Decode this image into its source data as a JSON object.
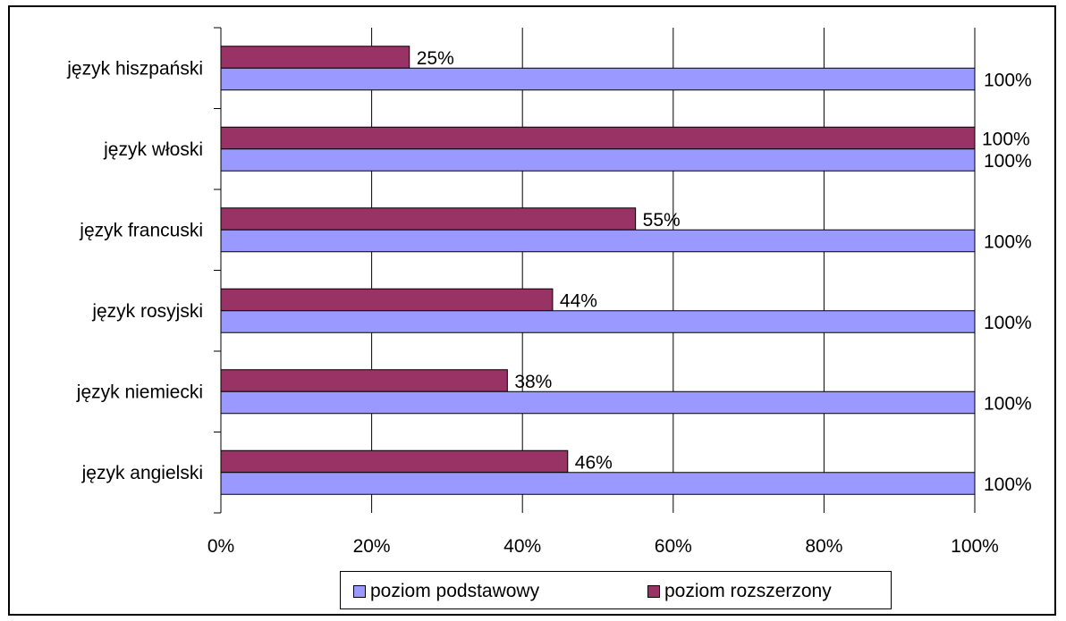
{
  "chart_data": {
    "type": "bar",
    "orientation": "horizontal",
    "categories": [
      "język angielski",
      "język niemiecki",
      "język rosyjski",
      "język francuski",
      "język włoski",
      "język hiszpański"
    ],
    "series": [
      {
        "name": "poziom podstawowy",
        "values": [
          100,
          100,
          100,
          100,
          100,
          100
        ],
        "labels": [
          "100%",
          "100%",
          "100%",
          "100%",
          "100%",
          "100%"
        ],
        "color": "#9999ff"
      },
      {
        "name": "poziom rozszerzony",
        "values": [
          46,
          38,
          44,
          55,
          100,
          25
        ],
        "labels": [
          "46%",
          "38%",
          "44%",
          "55%",
          "100%",
          "25%"
        ],
        "color": "#993366"
      }
    ],
    "xlim": [
      0,
      100
    ],
    "xticks": [
      "0%",
      "20%",
      "40%",
      "60%",
      "80%",
      "100%"
    ],
    "grid": true,
    "legend_position": "bottom"
  }
}
